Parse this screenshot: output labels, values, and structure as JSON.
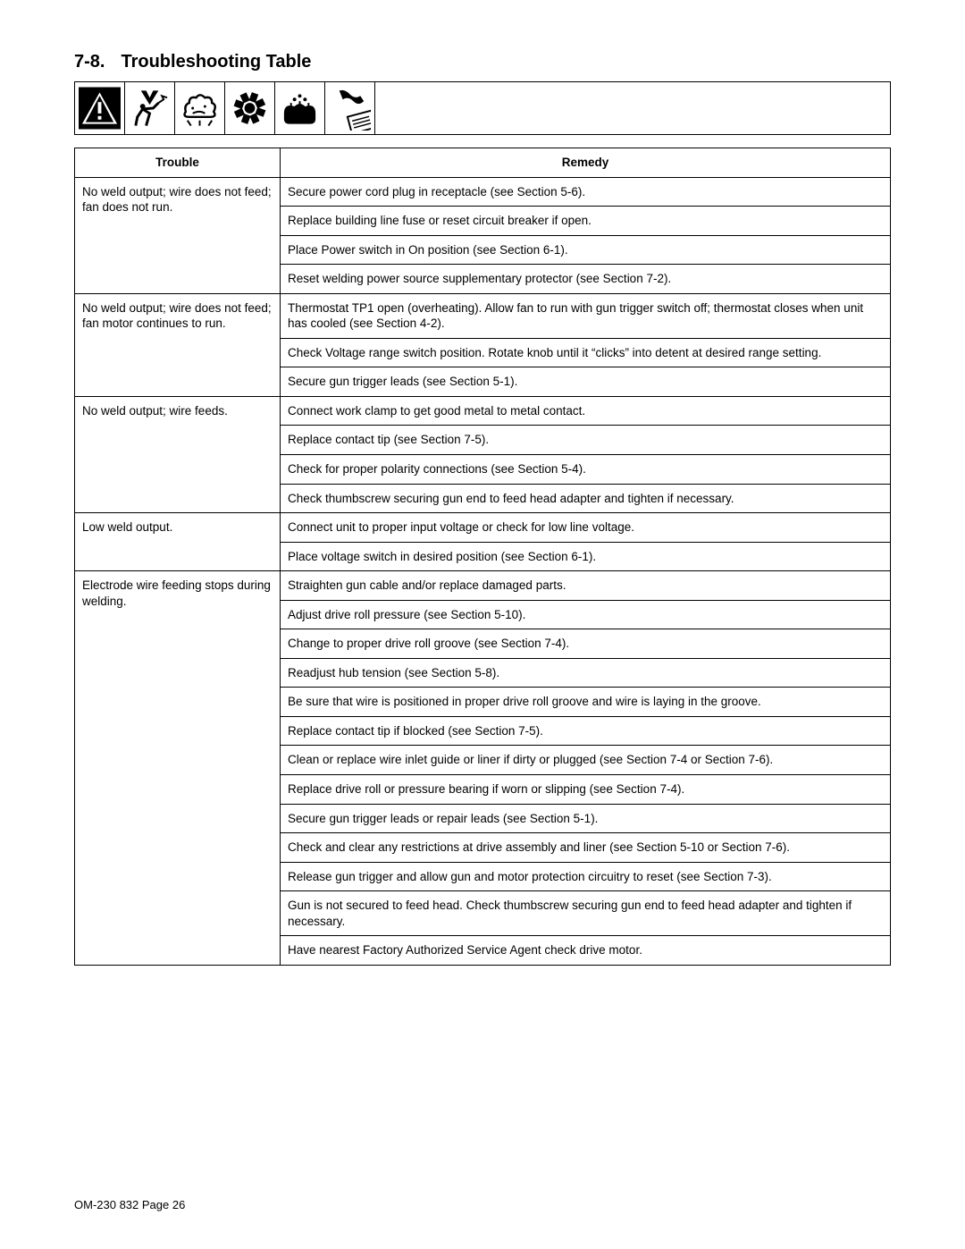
{
  "section": {
    "number": "7-8.",
    "title": "Troubleshooting Table"
  },
  "headers": {
    "trouble": "Trouble",
    "remedy": "Remedy"
  },
  "rows": [
    {
      "trouble": "No weld output; wire does not feed; fan does not run.",
      "remedies": [
        "Secure power cord plug in receptacle (see Section 5-6).",
        "Replace building line fuse or reset circuit breaker if open.",
        "Place Power switch in On position (see Section 6-1).",
        "Reset welding power source supplementary protector (see Section 7-2)."
      ]
    },
    {
      "trouble": "No weld output; wire does not feed; fan motor continues to run.",
      "remedies": [
        "Thermostat TP1 open (overheating). Allow fan to run with gun trigger switch off; thermostat closes when unit has cooled (see Section 4-2).",
        "Check Voltage range switch position. Rotate knob until it “clicks” into detent at desired range setting.",
        "Secure gun trigger leads (see Section 5-1)."
      ]
    },
    {
      "trouble": "No weld output; wire feeds.",
      "remedies": [
        "Connect work clamp to get good metal to metal contact.",
        "Replace contact tip (see Section 7-5).",
        "Check for proper polarity connections (see Section 5-4).",
        "Check thumbscrew securing gun end to feed head adapter and tighten if necessary."
      ]
    },
    {
      "trouble": "Low weld output.",
      "remedies": [
        "Connect unit to proper input voltage or check for low line voltage.",
        "Place voltage switch in desired position (see Section 6-1)."
      ]
    },
    {
      "trouble": "Electrode wire feeding stops during welding.",
      "trouble_justify": true,
      "remedies": [
        "Straighten gun cable and/or replace damaged parts.",
        "Adjust drive roll pressure (see Section 5-10).",
        "Change to proper drive roll groove (see Section 7-4).",
        "Readjust hub tension (see Section 5-8).",
        "Be sure that wire is positioned in proper drive roll groove and wire is laying in the groove.",
        "Replace contact tip if blocked (see Section 7-5).",
        "Clean or replace wire inlet guide or liner if dirty or plugged (see Section 7-4 or Section 7-6).",
        "Replace drive roll or pressure bearing if worn or slipping (see Section 7-4).",
        "Secure gun trigger leads or repair leads (see Section 5-1).",
        "Check and clear any restrictions at drive assembly and liner (see Section 5-10 or Section 7-6).",
        "Release gun trigger and allow gun and motor protection circuitry to reset (see Section 7-3).",
        "Gun is not secured to feed head. Check thumbscrew securing gun end to feed head adapter and tighten if necessary.",
        "Have nearest Factory Authorized Service Agent check drive motor."
      ]
    }
  ],
  "footer": "OM-230 832 Page 26",
  "icons": [
    "warning-icon",
    "electric-shock-icon",
    "fumes-icon",
    "moving-parts-icon",
    "hot-parts-icon",
    "manual-icon"
  ],
  "colors": {
    "text": "#000000",
    "background": "#ffffff",
    "border": "#000000"
  }
}
